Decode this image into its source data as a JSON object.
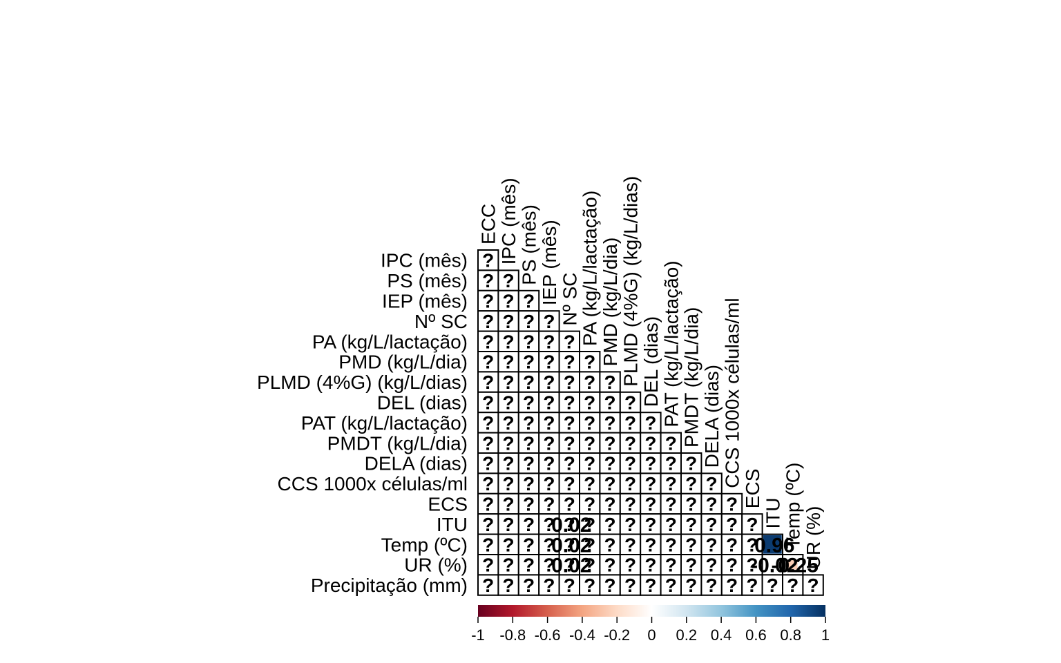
{
  "chart_data": {
    "type": "heatmap",
    "variant": "correlation matrix, lower triangle",
    "row_labels": [
      "IPC (mês)",
      "PS (mês)",
      "IEP (mês)",
      "Nº SC",
      "PA (kg/L/lactação)",
      "PMD (kg/L/dia)",
      "PLMD (4%G) (kg/L/dias)",
      "DEL (dias)",
      "PAT (kg/L/lactação)",
      "PMDT (kg/L/dia)",
      "DELA (dias)",
      "CCS 1000x células/ml",
      "ECS",
      "ITU",
      "Temp (ºC)",
      "UR (%)",
      "Precipitação (mm)"
    ],
    "column_labels": [
      "ECC",
      "IPC (mês)",
      "PS (mês)",
      "IEP (mês)",
      "Nº SC",
      "PA (kg/L/lactação)",
      "PMD (kg/L/dia)",
      "PLMD (4%G) (kg/L/dias)",
      "DEL (dias)",
      "PAT (kg/L/lactação)",
      "PMDT (kg/L/dia)",
      "DELA (dias)",
      "CCS 1000x células/ml",
      "ECS",
      "ITU",
      "Temp (ºC)",
      "UR (%)"
    ],
    "missing_symbol": "?",
    "values": [
      [
        null
      ],
      [
        null,
        null
      ],
      [
        null,
        null,
        null
      ],
      [
        null,
        null,
        null,
        null
      ],
      [
        null,
        null,
        null,
        null,
        null
      ],
      [
        null,
        null,
        null,
        null,
        null,
        null
      ],
      [
        null,
        null,
        null,
        null,
        null,
        null,
        null
      ],
      [
        null,
        null,
        null,
        null,
        null,
        null,
        null,
        null
      ],
      [
        null,
        null,
        null,
        null,
        null,
        null,
        null,
        null,
        null
      ],
      [
        null,
        null,
        null,
        null,
        null,
        null,
        null,
        null,
        null,
        null
      ],
      [
        null,
        null,
        null,
        null,
        null,
        null,
        null,
        null,
        null,
        null,
        null
      ],
      [
        null,
        null,
        null,
        null,
        null,
        null,
        null,
        null,
        null,
        null,
        null,
        null
      ],
      [
        null,
        null,
        null,
        null,
        null,
        null,
        null,
        null,
        null,
        null,
        null,
        null,
        null
      ],
      [
        null,
        null,
        null,
        null,
        null,
        null,
        null,
        null,
        null,
        null,
        null,
        null,
        null,
        null
      ],
      [
        null,
        null,
        null,
        null,
        null,
        null,
        null,
        null,
        null,
        null,
        null,
        null,
        null,
        null,
        0.96
      ],
      [
        null,
        null,
        null,
        null,
        null,
        null,
        null,
        null,
        null,
        null,
        null,
        null,
        null,
        null,
        -0.02,
        -0.25
      ],
      [
        null,
        null,
        null,
        null,
        null,
        null,
        null,
        null,
        null,
        null,
        null,
        null,
        null,
        null,
        null,
        null,
        null
      ]
    ],
    "overlay_labels": [
      {
        "row": 13,
        "col": 4,
        "text": "0.02"
      },
      {
        "row": 14,
        "col": 4,
        "text": "0.02"
      },
      {
        "row": 15,
        "col": 4,
        "text": "0.02"
      },
      {
        "row": 14,
        "col": 14,
        "text": "0.96"
      },
      {
        "row": 15,
        "col": 14,
        "text": "-0.02"
      },
      {
        "row": 15,
        "col": 15,
        "text": "-0.25"
      }
    ],
    "colorbar": {
      "range": [
        -1,
        1
      ],
      "ticks": [
        "-1",
        "-0.8",
        "-0.6",
        "-0.4",
        "-0.2",
        "0",
        "0.2",
        "0.4",
        "0.6",
        "0.8",
        "1"
      ],
      "colors": [
        "#67001F",
        "#B2182B",
        "#D6604D",
        "#F4A582",
        "#FDDBC7",
        "#FFFFFF",
        "#D1E5F0",
        "#92C5DE",
        "#4393C3",
        "#2166AC",
        "#053061"
      ]
    },
    "title": "",
    "xlabel": "",
    "ylabel": ""
  }
}
